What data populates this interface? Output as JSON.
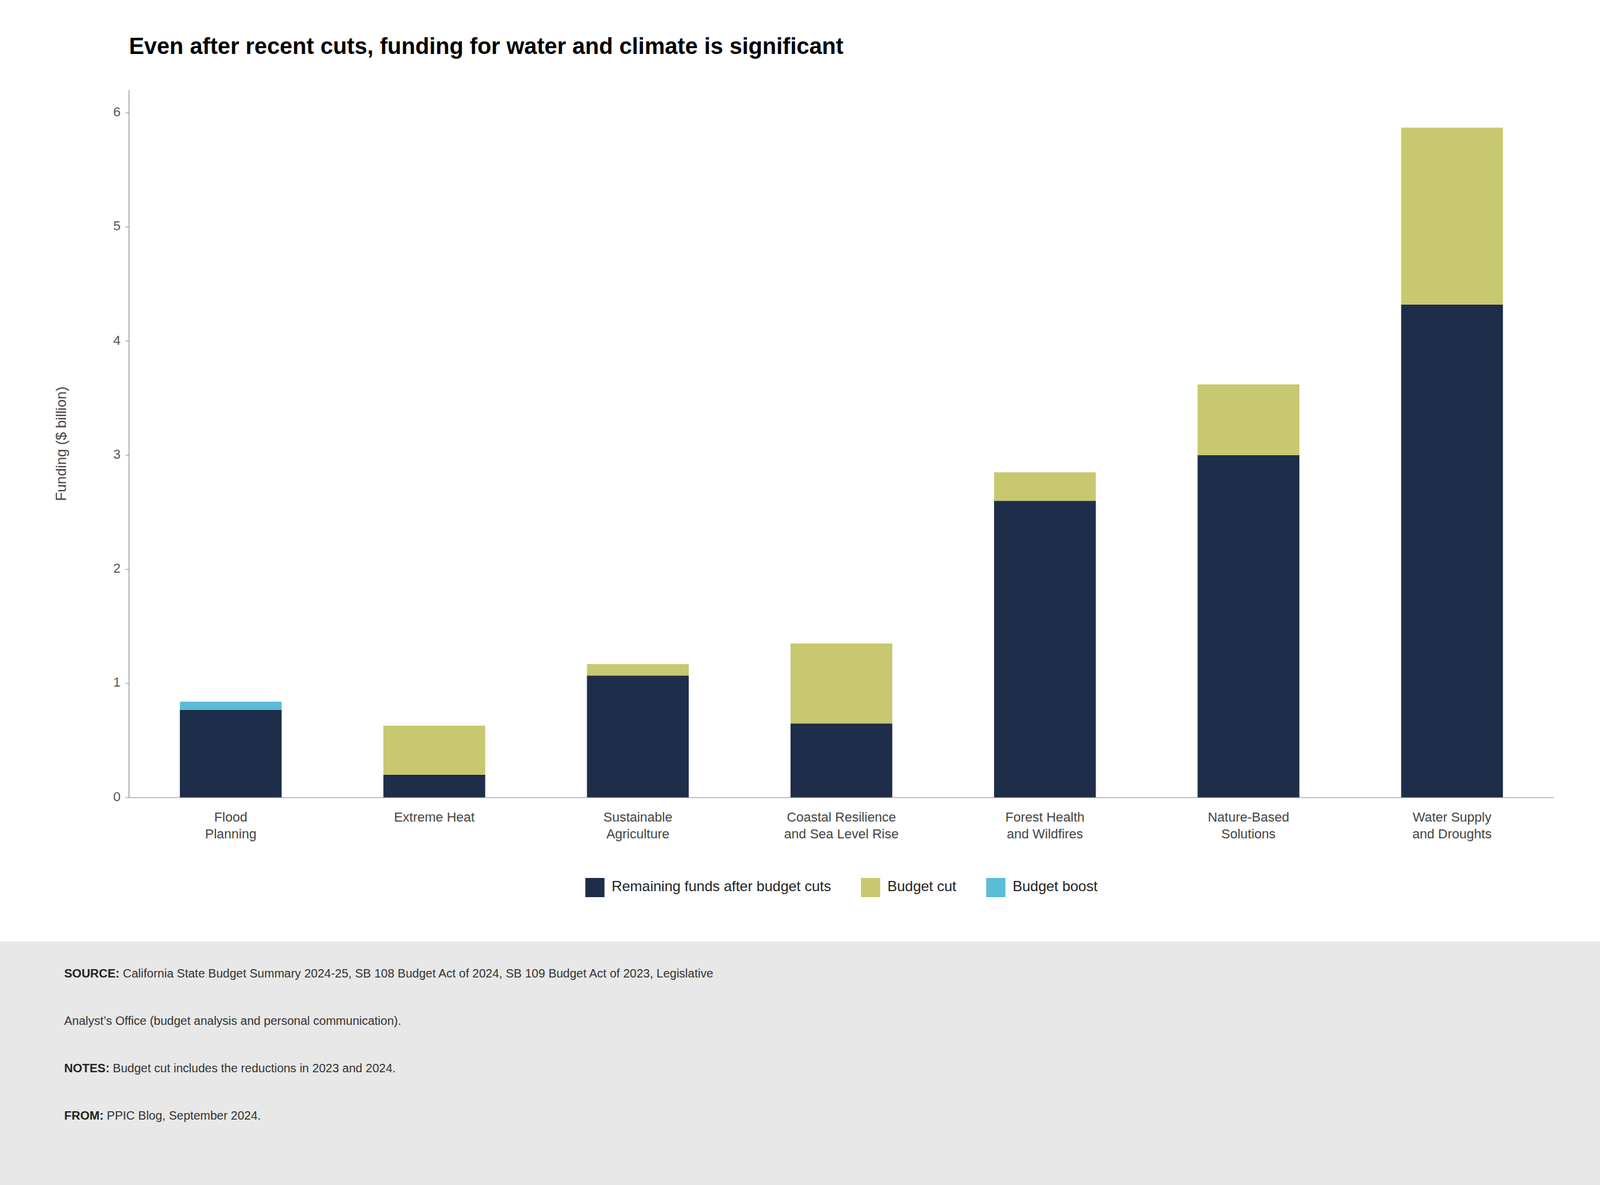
{
  "chart_data": {
    "type": "bar",
    "stacked": true,
    "title": "Even after recent cuts, funding for water and climate is significant",
    "ylabel": "Funding ($ billion)",
    "categories": [
      "Flood\nPlanning",
      "Extreme Heat",
      "Sustainable\nAgriculture",
      "Coastal Resilience\nand Sea Level Rise",
      "Forest Health\nand Wildfires",
      "Nature-Based\nSolutions",
      "Water Supply\nand Droughts"
    ],
    "series": [
      {
        "name": "Remaining funds after budget cuts",
        "color": "#1e2d4a",
        "values": [
          0.77,
          0.2,
          1.07,
          0.65,
          2.6,
          3.0,
          4.32
        ]
      },
      {
        "name": "Budget cut",
        "color": "#c8c870",
        "values": [
          0.0,
          0.43,
          0.1,
          0.7,
          0.25,
          0.62,
          1.55
        ]
      },
      {
        "name": "Budget boost",
        "color": "#5bbcd6",
        "values": [
          0.07,
          0.0,
          0.0,
          0.0,
          0.0,
          0.0,
          0.0
        ]
      }
    ],
    "ylim": [
      0,
      6.2
    ],
    "yticks": [
      0,
      1,
      2,
      3,
      4,
      5,
      6
    ],
    "grid": false,
    "legend": "bottom",
    "annotations": [
      {
        "bold": "SOURCE:",
        "text": " California State Budget Summary 2024-25, SB 108 Budget Act of 2024, SB 109 Budget Act of 2023, Legislative"
      },
      {
        "text": "Analyst’s Office (budget analysis and personal communication)."
      },
      {
        "bold": "NOTES:",
        "text": " Budget cut includes the reductions in 2023 and 2024."
      },
      {
        "bold": "FROM:",
        "text": " PPIC Blog, September 2024."
      }
    ]
  }
}
